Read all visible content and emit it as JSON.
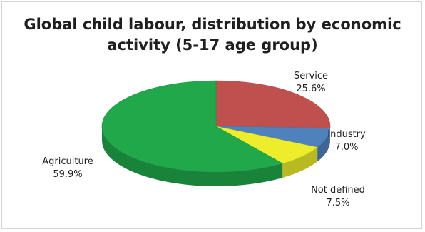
{
  "chart_data": {
    "type": "pie",
    "title_lines": [
      "Global child labour, distribution by economic",
      "activity (5-17 age group)"
    ],
    "slices": [
      {
        "label": "Service",
        "value_label": "25.6%",
        "value": 25.6,
        "color": "#c0504d"
      },
      {
        "label": "Industry",
        "value_label": "7.0%",
        "value": 7.0,
        "color": "#4f81bd"
      },
      {
        "label": "Not defined",
        "value_label": "7.5%",
        "value": 7.5,
        "color": "#eded2c"
      },
      {
        "label": "Agriculture",
        "value_label": "59.9%",
        "value": 59.9,
        "color": "#21a84a"
      }
    ],
    "style": "3d"
  }
}
